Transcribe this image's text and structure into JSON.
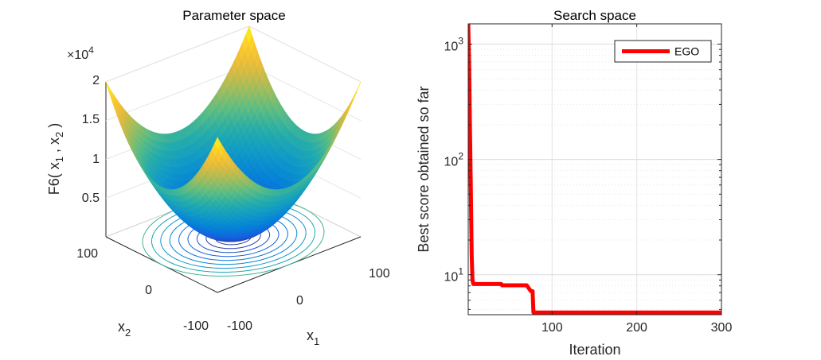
{
  "chart_data": [
    {
      "type": "surface",
      "title": "Parameter space",
      "xlabel": "x",
      "xlabel_sub": "1",
      "ylabel": "x",
      "ylabel_sub": "2",
      "zlabel": "F6( x1 , x2 )",
      "zlabel_parts": {
        "pre": "F6( x",
        "s1": "1",
        "mid": " , x",
        "s2": "2",
        "post": " )"
      },
      "z_multiplier_base": "×10",
      "z_multiplier_exp": "4",
      "x_ticks": [
        "-100",
        "0",
        "100"
      ],
      "y_ticks": [
        "100",
        "0",
        "-100"
      ],
      "z_ticks": [
        "2",
        "1.5",
        "1",
        "0.5"
      ],
      "xlim": [
        -100,
        100
      ],
      "ylim": [
        -100,
        100
      ],
      "zlim": [
        0,
        20000
      ],
      "function": "sum of squares (x1^2 + x2^2)",
      "contour_projection": true,
      "colormap": "parula"
    },
    {
      "type": "line",
      "title": "Search space",
      "xlabel": "Iteration",
      "ylabel": "Best score obtained so far",
      "yscale": "log",
      "xlim": [
        1,
        300
      ],
      "ylim": [
        4.5,
        1500
      ],
      "x_ticks": [
        "100",
        "200",
        "300"
      ],
      "y_ticks": [
        {
          "base": "10",
          "exp": "3"
        },
        {
          "base": "10",
          "exp": "2"
        },
        {
          "base": "10",
          "exp": "1"
        }
      ],
      "grid": true,
      "legend_placement": "top-right",
      "series": [
        {
          "name": "EGO",
          "color": "#ff0000",
          "x": [
            1,
            2,
            3,
            4,
            5,
            6,
            7,
            10,
            20,
            40,
            41,
            55,
            70,
            75,
            77,
            78,
            84,
            85,
            100,
            200,
            300
          ],
          "y": [
            1500,
            700,
            200,
            60,
            15,
            9,
            8.3,
            8.3,
            8.3,
            8.3,
            8.1,
            8.1,
            8.1,
            7.2,
            7.2,
            4.7,
            4.7,
            4.7,
            4.7,
            4.7,
            4.7
          ]
        }
      ]
    }
  ]
}
